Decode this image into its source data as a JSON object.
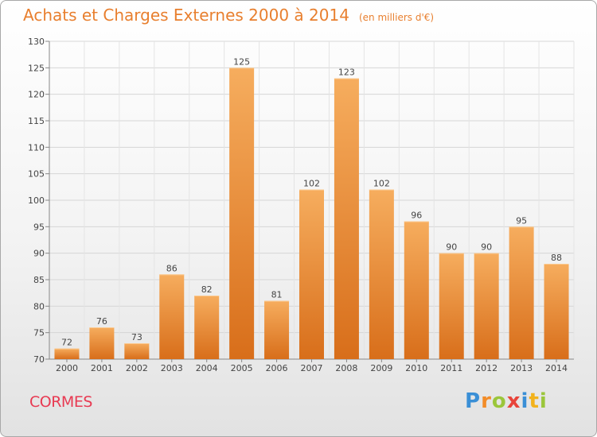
{
  "chart_data": {
    "type": "bar",
    "title": "Achats et Charges Externes 2000 à 2014",
    "unit_note": "(en milliers d'€)",
    "categories": [
      "2000",
      "2001",
      "2002",
      "2003",
      "2004",
      "2005",
      "2006",
      "2007",
      "2008",
      "2009",
      "2010",
      "2011",
      "2012",
      "2013",
      "2014"
    ],
    "values": [
      72,
      76,
      73,
      86,
      82,
      125,
      81,
      102,
      123,
      102,
      96,
      90,
      90,
      95,
      88
    ],
    "ylim": [
      70,
      130
    ],
    "yticks": [
      70,
      75,
      80,
      85,
      90,
      95,
      100,
      105,
      110,
      115,
      120,
      125,
      130
    ],
    "grid": true,
    "bar_color": "#f0913a",
    "bar_color_light": "#f6ad5e",
    "bar_color_dark": "#d86e1a"
  },
  "footer": {
    "commune": "CORMES",
    "logo_letters": [
      {
        "ch": "P",
        "color": "#3a8fd6"
      },
      {
        "ch": "r",
        "color": "#f28c28"
      },
      {
        "ch": "o",
        "color": "#9bc63b"
      },
      {
        "ch": "x",
        "color": "#e8443a"
      },
      {
        "ch": "i",
        "color": "#3a8fd6"
      },
      {
        "ch": "t",
        "color": "#f2b21c"
      },
      {
        "ch": "i",
        "color": "#9bc63b"
      }
    ]
  }
}
